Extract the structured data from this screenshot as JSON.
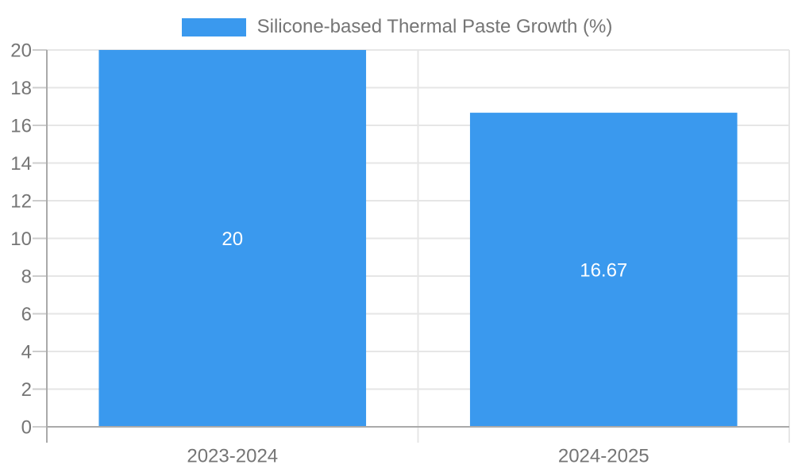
{
  "chart_data": {
    "type": "bar",
    "series_name": "Silicone-based Thermal Paste Growth (%)",
    "categories": [
      "2023-2024",
      "2024-2025"
    ],
    "values": [
      20,
      16.67
    ],
    "data_labels": [
      "20",
      "16.67"
    ],
    "ylim": [
      0,
      20
    ],
    "ytick_step": 2,
    "ytick_labels": [
      "0",
      "2",
      "4",
      "6",
      "8",
      "10",
      "12",
      "14",
      "16",
      "18",
      "20"
    ],
    "grid": true,
    "legend_position": "top-center",
    "colors": {
      "bar": "#3A99EE",
      "bar_value_label": "#ffffff",
      "gridline": "#e6e6e6",
      "tick_mark": "#cccccc",
      "axis_line": "#aaaaaa",
      "axis_text": "#757575",
      "legend_text": "#757575",
      "background": "#ffffff"
    }
  }
}
